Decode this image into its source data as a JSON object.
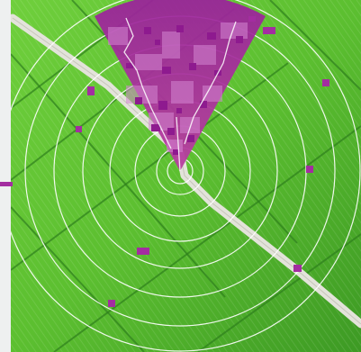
{
  "scene": {
    "description_hidden": "",
    "colors": {
      "page_background": "#eef0f0",
      "field_light": "#7dd447",
      "field_mid": "#52b52c",
      "field_dark": "#2f8a1e",
      "road": "#dcdcd2",
      "ring": "#ffffff",
      "sector_fill": "#a028a6",
      "sector_light": "#c56ac6",
      "blip": "#a32da0"
    },
    "ring_count": 7,
    "blip_count": 11
  }
}
